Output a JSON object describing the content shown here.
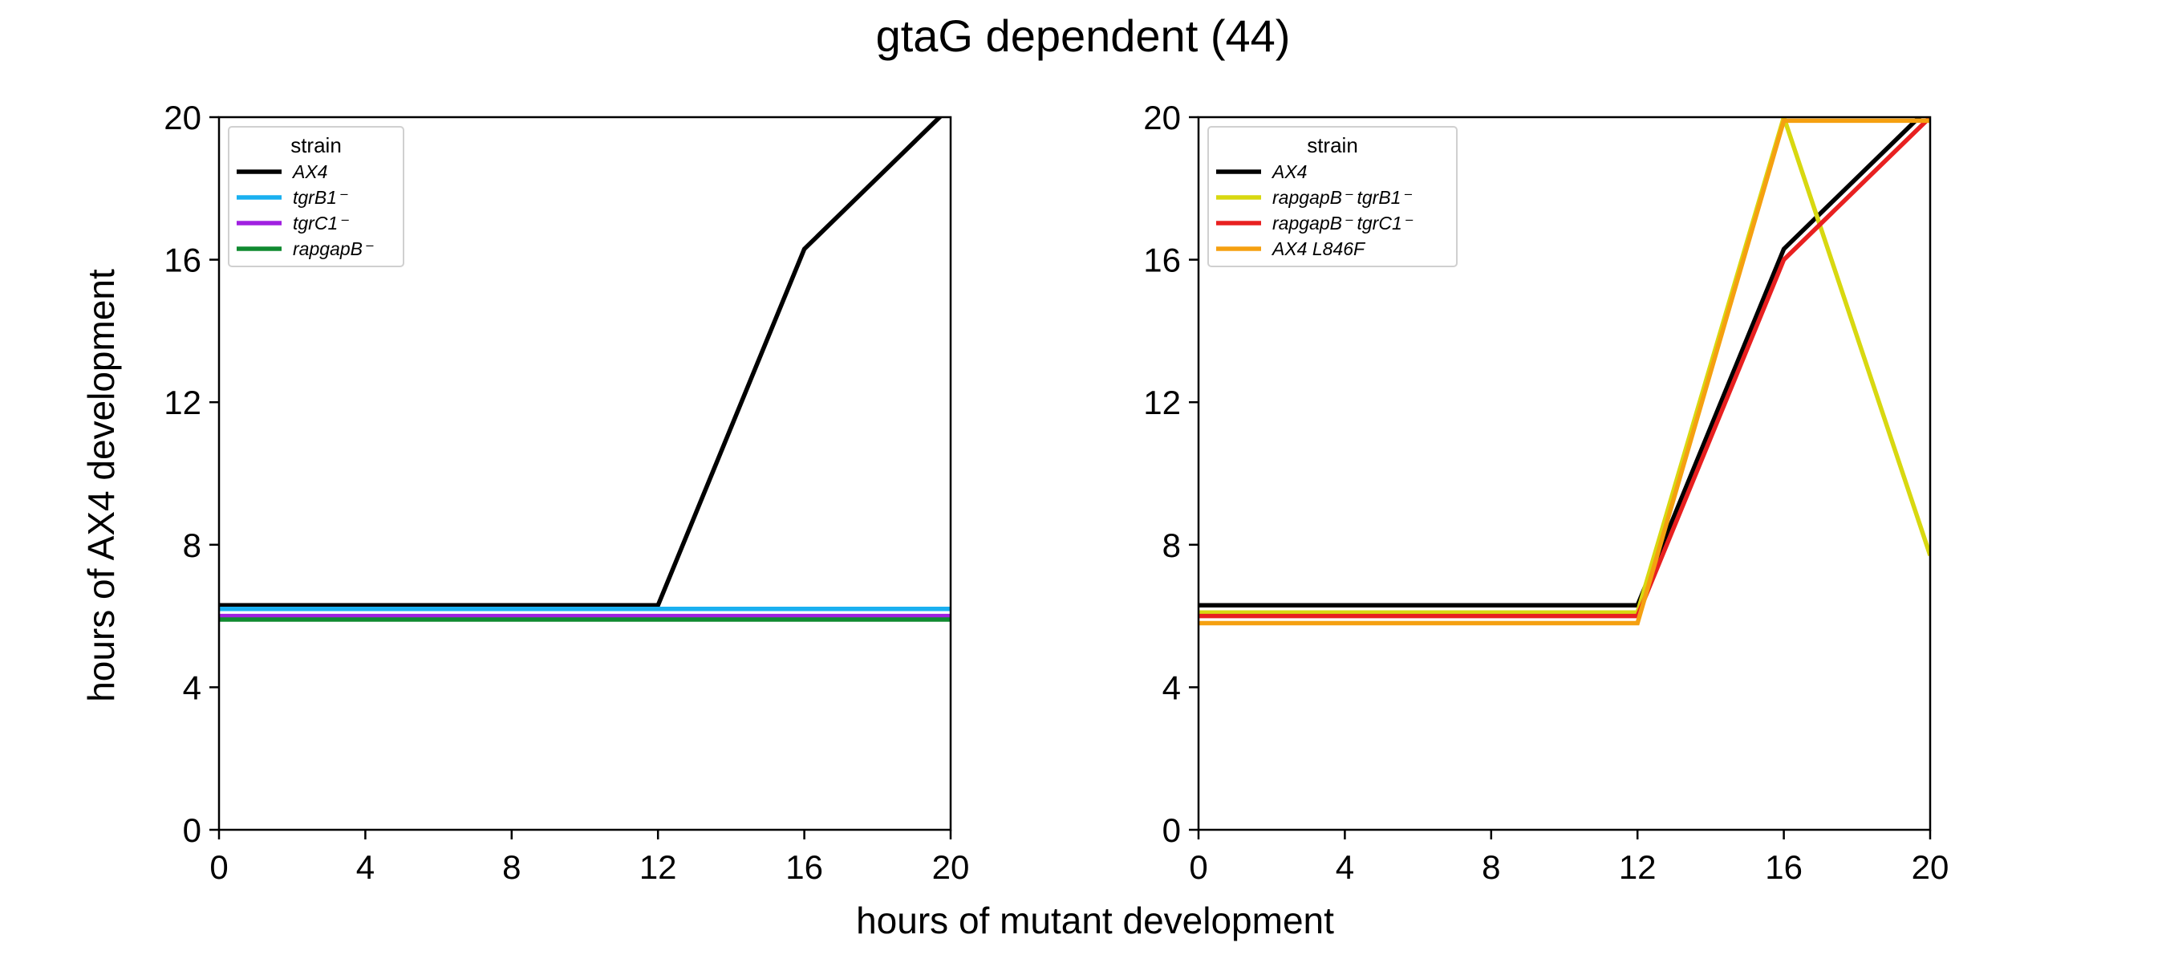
{
  "figure": {
    "title": "gtaG dependent (44)",
    "xlabel": "hours of mutant development",
    "ylabel": "hours of AX4 development"
  },
  "chart_data": [
    {
      "type": "line",
      "title": "",
      "xlabel": "hours of mutant development",
      "ylabel": "hours of AX4 development",
      "xlim": [
        0,
        20
      ],
      "ylim": [
        0,
        20
      ],
      "xticks": [
        0,
        4,
        8,
        12,
        16,
        20
      ],
      "yticks": [
        0,
        4,
        8,
        12,
        16,
        20
      ],
      "grid": false,
      "legend": {
        "title": "strain",
        "position": "top-left"
      },
      "series": [
        {
          "name": "AX4",
          "color": "#000000",
          "x": [
            0,
            12,
            16,
            20
          ],
          "y": [
            6.3,
            6.3,
            16.3,
            20.3
          ]
        },
        {
          "name": "tgrB1⁻",
          "color": "#1ab0f0",
          "x": [
            0,
            12,
            16,
            20
          ],
          "y": [
            6.2,
            6.2,
            6.2,
            6.2
          ]
        },
        {
          "name": "tgrC1⁻",
          "color": "#a020e0",
          "x": [
            0,
            12,
            16,
            20
          ],
          "y": [
            6.0,
            6.0,
            6.0,
            6.0
          ]
        },
        {
          "name": "rapgapB⁻",
          "color": "#108a30",
          "x": [
            0,
            12,
            16,
            20
          ],
          "y": [
            5.9,
            5.9,
            5.9,
            5.9
          ]
        }
      ]
    },
    {
      "type": "line",
      "title": "",
      "xlabel": "hours of mutant development",
      "ylabel": "",
      "xlim": [
        0,
        20
      ],
      "ylim": [
        0,
        20
      ],
      "xticks": [
        0,
        4,
        8,
        12,
        16,
        20
      ],
      "yticks": [
        0,
        4,
        8,
        12,
        16,
        20
      ],
      "grid": false,
      "legend": {
        "title": "strain",
        "position": "top-left"
      },
      "series": [
        {
          "name": "AX4",
          "color": "#000000",
          "x": [
            0,
            12,
            16,
            20
          ],
          "y": [
            6.3,
            6.3,
            16.3,
            20.3
          ]
        },
        {
          "name": "rapgapB⁻ tgrB1⁻",
          "color": "#d8d810",
          "x": [
            0,
            12,
            16,
            20
          ],
          "y": [
            6.1,
            6.1,
            20.0,
            7.7
          ]
        },
        {
          "name": "rapgapB⁻ tgrC1⁻",
          "color": "#e82020",
          "x": [
            0,
            12,
            16,
            20
          ],
          "y": [
            6.0,
            6.0,
            16.0,
            20.0
          ]
        },
        {
          "name": "AX4 L846F",
          "color": "#f5a010",
          "x": [
            0,
            12,
            16,
            20
          ],
          "y": [
            5.8,
            5.8,
            19.9,
            19.9
          ]
        }
      ]
    }
  ]
}
